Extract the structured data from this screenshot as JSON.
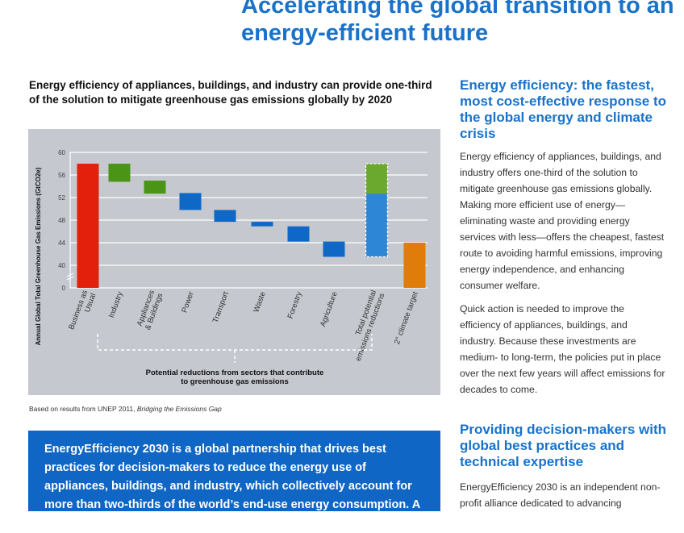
{
  "page_title": "Accelerating the global transition to an energy-efficient future",
  "chart_heading": "Energy efficiency of appliances, buildings, and industry can provide one-third of the solution to mitigate greenhouse gas emissions globally by 2020",
  "source_prefix": "Based on results from UNEP 2011, ",
  "source_title": "Bridging the Emissions Gap",
  "callout_text": "EnergyEfficiency 2030 is a global partnership that drives best practices for decision-makers to reduce the energy use of appliances, buildings, and industry, which collectively account for more than two-thirds of the world’s end-use energy consumption. A joint initiative of",
  "side": {
    "heading1": "Energy efficiency: the fastest, most cost-effective response to the global energy and climate crisis",
    "para1": "Energy efficiency of appliances, buildings, and industry offers one-third of the solution to mitigate greenhouse gas emissions globally. Making more efficient use of energy—eliminating waste and providing energy services with less—offers the cheapest, fastest route to avoiding harmful emissions, improving energy independence, and enhancing consumer welfare.",
    "para2": "Quick action is needed to improve the efficiency of appliances, buildings, and industry. Because these investments are medium- to long-term, the policies put in place over the next few years will affect emissions for decades to come.",
    "heading2": "Providing decision-makers with global best practices and technical expertise",
    "para3": "EnergyEfficiency 2030 is an independent non-profit alliance dedicated to advancing"
  },
  "chart_data": {
    "type": "bar",
    "subtype": "waterfall",
    "ylabel": "Annual Global Total Greenhouse Gas Emissions (GtCO2e)",
    "yticks": [
      0,
      40,
      44,
      48,
      52,
      56,
      60
    ],
    "ylim": [
      0,
      60
    ],
    "axis_break": [
      0,
      40
    ],
    "grid": true,
    "bracket_label": "Potential reductions from sectors that contribute to greenhouse gas emissions",
    "bars": [
      {
        "label": "Business as Usual",
        "lines": [
          "Business as",
          "Usual"
        ],
        "from": 0,
        "to": 58,
        "color": "#e3200b"
      },
      {
        "label": "Industry",
        "lines": [
          "Industry"
        ],
        "from": 54.8,
        "to": 58,
        "color": "#4a9416"
      },
      {
        "label": "Appliances & Buildings",
        "lines": [
          "Appliances",
          "& Buildings"
        ],
        "from": 52.7,
        "to": 55,
        "color": "#4a9416"
      },
      {
        "label": "Power",
        "lines": [
          "Power"
        ],
        "from": 49.8,
        "to": 52.8,
        "color": "#0f68c6"
      },
      {
        "label": "Transport",
        "lines": [
          "Transport"
        ],
        "from": 47.7,
        "to": 49.8,
        "color": "#0f68c6"
      },
      {
        "label": "Waste",
        "lines": [
          "Waste"
        ],
        "from": 46.9,
        "to": 47.7,
        "color": "#0f68c6"
      },
      {
        "label": "Forestry",
        "lines": [
          "Forestry"
        ],
        "from": 44.2,
        "to": 46.9,
        "color": "#0f68c6"
      },
      {
        "label": "Agriculture",
        "lines": [
          "Agriculture"
        ],
        "from": 41.5,
        "to": 44.2,
        "color": "#0f68c6"
      },
      {
        "label": "Total potential emissions reductions",
        "lines": [
          "Total potential",
          "emissions reductions"
        ],
        "stack": [
          {
            "from": 52.7,
            "to": 58,
            "color": "#6aa82e"
          },
          {
            "from": 41.5,
            "to": 52.7,
            "color": "#2e86d6"
          }
        ],
        "dashed_outline": true
      },
      {
        "label": "2° climate target",
        "lines": [
          "2° climate target"
        ],
        "from": 0,
        "to": 44,
        "color": "#e07d0a"
      }
    ]
  }
}
